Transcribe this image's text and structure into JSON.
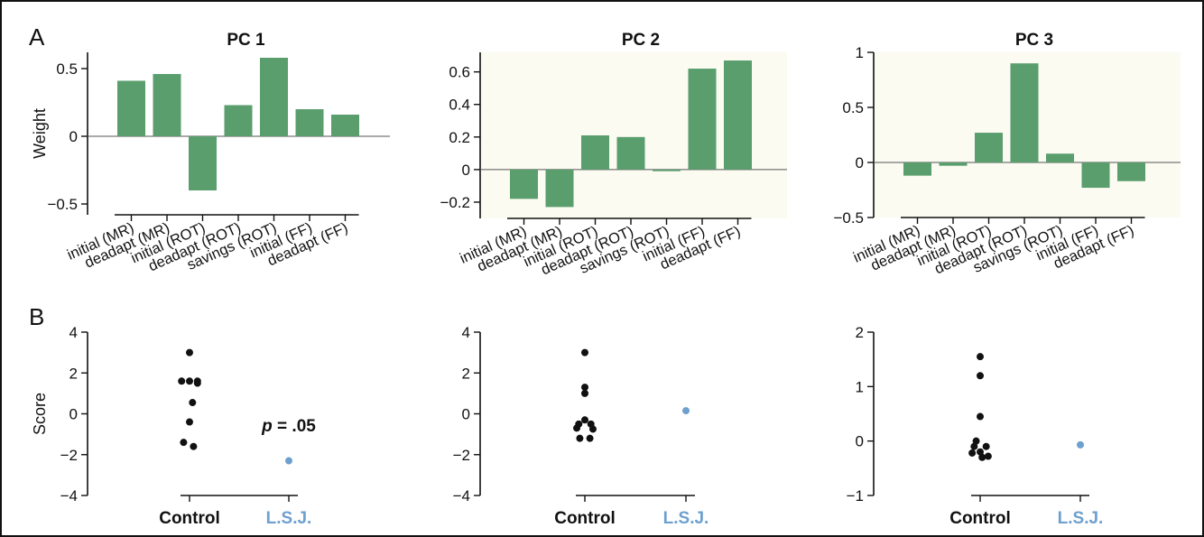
{
  "panel_labels": [
    "A",
    "B"
  ],
  "colors": {
    "bar": "#5a9e6e",
    "patient": "#6ea0cf",
    "control": "#111111",
    "bg_faint": "#fbfbf2"
  },
  "annotation": {
    "p_prefix": "p",
    "p_rest": " = .05"
  },
  "chart_data": [
    {
      "type": "bar",
      "title": "PC 1",
      "ylabel": "Weight",
      "categories": [
        "initial (MR)",
        "deadapt (MR)",
        "initial (ROT)",
        "deadapt (ROT)",
        "savings (ROT)",
        "initial (FF)",
        "deadapt (FF)"
      ],
      "values": [
        0.41,
        0.46,
        -0.4,
        0.23,
        0.58,
        0.2,
        0.16
      ],
      "ylim": [
        -0.58,
        0.62
      ],
      "yticks": [
        -0.5,
        0,
        0.5
      ],
      "ytick_labels": [
        "−0.5",
        "0",
        "0.5"
      ]
    },
    {
      "type": "bar",
      "title": "PC 2",
      "ylabel": "",
      "categories": [
        "initial (MR)",
        "deadapt (MR)",
        "initial (ROT)",
        "deadapt (ROT)",
        "savings (ROT)",
        "initial (FF)",
        "deadapt (FF)"
      ],
      "values": [
        -0.18,
        -0.23,
        0.21,
        0.2,
        -0.01,
        0.62,
        0.67
      ],
      "ylim": [
        -0.3,
        0.72
      ],
      "yticks": [
        -0.2,
        0,
        0.2,
        0.4,
        0.6
      ],
      "ytick_labels": [
        "−0.2",
        "0",
        "0.2",
        "0.4",
        "0.6"
      ]
    },
    {
      "type": "bar",
      "title": "PC 3",
      "ylabel": "",
      "categories": [
        "initial (MR)",
        "deadapt (MR)",
        "initial (ROT)",
        "deadapt (ROT)",
        "savings (ROT)",
        "initial (FF)",
        "deadapt (FF)"
      ],
      "values": [
        -0.12,
        -0.03,
        0.27,
        0.9,
        0.08,
        -0.23,
        -0.17
      ],
      "ylim": [
        -0.5,
        1.0
      ],
      "yticks": [
        -0.5,
        0,
        0.5,
        1
      ],
      "ytick_labels": [
        "−0.5",
        "0",
        "0.5",
        "1"
      ]
    },
    {
      "type": "scatter",
      "ylabel": "Score",
      "groups": [
        "Control",
        "L.S.J."
      ],
      "ylim": [
        -4,
        4
      ],
      "yticks": [
        -4,
        -2,
        0,
        2,
        4
      ],
      "ytick_labels": [
        "−4",
        "−2",
        "0",
        "2",
        "4"
      ],
      "series": [
        {
          "x": [
            0,
            0,
            0.08,
            0.08,
            -0.08,
            0.03,
            0,
            -0.06,
            0.04
          ],
          "y": [
            3.0,
            1.6,
            1.6,
            1.5,
            1.6,
            0.55,
            -0.4,
            -1.4,
            -1.6
          ]
        },
        {
          "x": [
            1
          ],
          "y": [
            -2.3
          ]
        }
      ]
    },
    {
      "type": "scatter",
      "ylabel": "",
      "groups": [
        "Control",
        "L.S.J."
      ],
      "ylim": [
        -4,
        4
      ],
      "yticks": [
        -4,
        -2,
        0,
        2,
        4
      ],
      "ytick_labels": [
        "−4",
        "−2",
        "0",
        "2",
        "4"
      ],
      "series": [
        {
          "x": [
            0,
            0,
            0,
            -0.06,
            0.06,
            0,
            -0.08,
            0.08,
            -0.05,
            0.05
          ],
          "y": [
            3.0,
            1.3,
            1.0,
            -0.5,
            -0.5,
            -0.3,
            -0.7,
            -0.75,
            -1.2,
            -1.2
          ]
        },
        {
          "x": [
            1
          ],
          "y": [
            0.15
          ]
        }
      ]
    },
    {
      "type": "scatter",
      "ylabel": "",
      "groups": [
        "Control",
        "L.S.J."
      ],
      "ylim": [
        -1,
        2
      ],
      "yticks": [
        -1,
        0,
        1,
        2
      ],
      "ytick_labels": [
        "−1",
        "0",
        "1",
        "2"
      ],
      "series": [
        {
          "x": [
            0,
            0,
            0,
            -0.06,
            0.06,
            -0.04,
            0,
            0.08,
            -0.08,
            0.02
          ],
          "y": [
            1.55,
            1.2,
            0.45,
            -0.1,
            -0.1,
            0.0,
            -0.2,
            -0.28,
            -0.22,
            -0.3
          ]
        },
        {
          "x": [
            1
          ],
          "y": [
            -0.07
          ]
        }
      ]
    }
  ]
}
